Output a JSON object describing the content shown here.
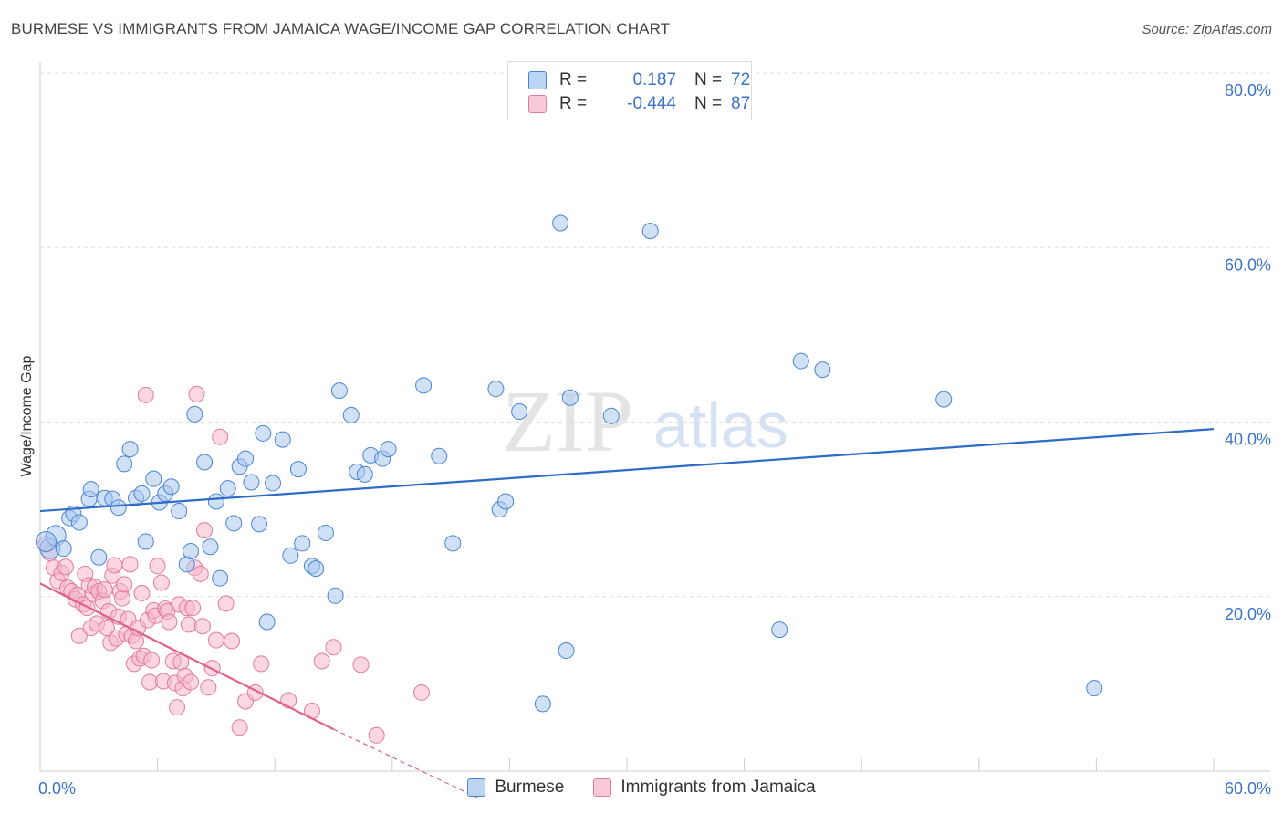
{
  "title": "BURMESE VS IMMIGRANTS FROM JAMAICA WAGE/INCOME GAP CORRELATION CHART",
  "source": "Source: ZipAtlas.com",
  "watermark": {
    "zip": "ZIP",
    "atlas": "atlas"
  },
  "legend": {
    "rows": [
      {
        "r_label": "R =",
        "r_value": "0.187",
        "n_label": "N =",
        "n_value": "72"
      },
      {
        "r_label": "R =",
        "r_value": "-0.444",
        "n_label": "N =",
        "n_value": "87"
      }
    ]
  },
  "colors": {
    "blue_fill": "#a9c8ef",
    "blue_stroke": "#4a84d4",
    "blue_line": "#2f6cc7",
    "pink_fill": "#f5b6ca",
    "pink_stroke": "#e27aa0",
    "pink_line": "#e0608e",
    "axis_text": "#3b73c8",
    "grid": "#dddddd"
  },
  "chart_data": {
    "type": "scatter",
    "title": "BURMESE VS IMMIGRANTS FROM JAMAICA WAGE/INCOME GAP CORRELATION CHART",
    "xlabel": "",
    "ylabel": "Wage/Income Gap",
    "xlim": [
      0,
      60
    ],
    "ylim": [
      0,
      80
    ],
    "x_ticks": [
      "0.0%",
      "60.0%"
    ],
    "y_ticks": [
      "20.0%",
      "40.0%",
      "60.0%",
      "80.0%"
    ],
    "y_tick_values": [
      20,
      40,
      60,
      80
    ],
    "grid": true,
    "legend_position": "bottom-center",
    "series": [
      {
        "name": "Burmese",
        "color": "blue",
        "points": [
          [
            0.5,
            25.5
          ],
          [
            0.8,
            27
          ],
          [
            1.2,
            25.5
          ],
          [
            1.5,
            29
          ],
          [
            1.7,
            29.5
          ],
          [
            2,
            28.5
          ],
          [
            2.5,
            31.2
          ],
          [
            2.6,
            32.3
          ],
          [
            3,
            24.5
          ],
          [
            3.3,
            31.3
          ],
          [
            3.7,
            31.2
          ],
          [
            4,
            30.2
          ],
          [
            4.3,
            35.2
          ],
          [
            4.6,
            36.9
          ],
          [
            4.9,
            31.3
          ],
          [
            5.2,
            31.8
          ],
          [
            5.4,
            26.3
          ],
          [
            5.8,
            33.5
          ],
          [
            6.1,
            30.8
          ],
          [
            6.4,
            31.8
          ],
          [
            6.7,
            32.6
          ],
          [
            7.1,
            29.8
          ],
          [
            7.5,
            23.7
          ],
          [
            7.7,
            25.2
          ],
          [
            7.9,
            40.9
          ],
          [
            8.4,
            35.4
          ],
          [
            8.7,
            25.7
          ],
          [
            9,
            30.9
          ],
          [
            9.2,
            22.1
          ],
          [
            9.6,
            32.4
          ],
          [
            9.9,
            28.4
          ],
          [
            10.2,
            34.9
          ],
          [
            10.5,
            35.8
          ],
          [
            10.8,
            33.1
          ],
          [
            11.2,
            28.3
          ],
          [
            11.4,
            38.7
          ],
          [
            11.6,
            17.1
          ],
          [
            11.9,
            33
          ],
          [
            12.4,
            38
          ],
          [
            12.8,
            24.7
          ],
          [
            13.2,
            34.6
          ],
          [
            13.4,
            26.1
          ],
          [
            13.9,
            23.5
          ],
          [
            14.1,
            23.2
          ],
          [
            14.6,
            27.3
          ],
          [
            15.1,
            20.1
          ],
          [
            15.3,
            43.6
          ],
          [
            15.9,
            40.8
          ],
          [
            16.2,
            34.3
          ],
          [
            16.6,
            34
          ],
          [
            16.9,
            36.2
          ],
          [
            17.5,
            35.8
          ],
          [
            17.8,
            36.9
          ],
          [
            19.6,
            44.2
          ],
          [
            20.4,
            36.1
          ],
          [
            21.1,
            26.1
          ],
          [
            23.3,
            43.8
          ],
          [
            23.5,
            30
          ],
          [
            23.8,
            30.9
          ],
          [
            24.5,
            41.2
          ],
          [
            25.7,
            7.7
          ],
          [
            26.6,
            62.8
          ],
          [
            26.9,
            13.8
          ],
          [
            27.1,
            42.8
          ],
          [
            29.2,
            40.7
          ],
          [
            31.2,
            61.9
          ],
          [
            37.8,
            16.2
          ],
          [
            38.9,
            47
          ],
          [
            40,
            46
          ],
          [
            46.2,
            42.6
          ],
          [
            53.9,
            9.5
          ],
          [
            0.3,
            26.3
          ]
        ],
        "trend": {
          "x": [
            0,
            60
          ],
          "y": [
            29.8,
            39.2
          ]
        }
      },
      {
        "name": "Immigrants from Jamaica",
        "color": "pink",
        "points": [
          [
            0.3,
            26
          ],
          [
            0.5,
            25
          ],
          [
            0.7,
            23.3
          ],
          [
            0.9,
            21.8
          ],
          [
            1.1,
            22.7
          ],
          [
            1.3,
            23.4
          ],
          [
            1.4,
            21
          ],
          [
            1.6,
            20.6
          ],
          [
            1.8,
            19.7
          ],
          [
            1.9,
            20.2
          ],
          [
            2,
            15.5
          ],
          [
            2.2,
            19.1
          ],
          [
            2.3,
            22.6
          ],
          [
            2.4,
            18.7
          ],
          [
            2.5,
            21.3
          ],
          [
            2.6,
            16.4
          ],
          [
            2.7,
            20.3
          ],
          [
            2.8,
            21.1
          ],
          [
            2.9,
            16.9
          ],
          [
            3,
            20.6
          ],
          [
            3.2,
            19.5
          ],
          [
            3.3,
            20.8
          ],
          [
            3.4,
            16.4
          ],
          [
            3.5,
            18.3
          ],
          [
            3.6,
            14.7
          ],
          [
            3.7,
            22.4
          ],
          [
            3.8,
            23.6
          ],
          [
            3.9,
            15.2
          ],
          [
            4,
            17.7
          ],
          [
            4.1,
            20.6
          ],
          [
            4.2,
            19.8
          ],
          [
            4.3,
            21.4
          ],
          [
            4.4,
            15.7
          ],
          [
            4.5,
            17.4
          ],
          [
            4.6,
            23.7
          ],
          [
            4.7,
            15.5
          ],
          [
            4.8,
            12.3
          ],
          [
            4.9,
            14.9
          ],
          [
            5,
            16.4
          ],
          [
            5.1,
            12.9
          ],
          [
            5.2,
            20.4
          ],
          [
            5.3,
            13.2
          ],
          [
            5.4,
            43.1
          ],
          [
            5.5,
            17.3
          ],
          [
            5.6,
            10.2
          ],
          [
            5.7,
            12.7
          ],
          [
            5.8,
            18.4
          ],
          [
            5.9,
            17.8
          ],
          [
            6,
            23.5
          ],
          [
            6.2,
            21.6
          ],
          [
            6.3,
            10.3
          ],
          [
            6.4,
            18.6
          ],
          [
            6.5,
            18.3
          ],
          [
            6.6,
            17.1
          ],
          [
            6.8,
            12.6
          ],
          [
            6.9,
            10.1
          ],
          [
            7,
            7.3
          ],
          [
            7.1,
            19.1
          ],
          [
            7.2,
            12.5
          ],
          [
            7.3,
            9.5
          ],
          [
            7.4,
            10.9
          ],
          [
            7.5,
            18.7
          ],
          [
            7.6,
            16.8
          ],
          [
            7.7,
            10.2
          ],
          [
            7.8,
            18.7
          ],
          [
            7.9,
            23.3
          ],
          [
            8,
            43.2
          ],
          [
            8.2,
            22.6
          ],
          [
            8.3,
            16.6
          ],
          [
            8.4,
            27.6
          ],
          [
            8.6,
            9.6
          ],
          [
            8.8,
            11.8
          ],
          [
            9,
            15
          ],
          [
            9.2,
            38.3
          ],
          [
            9.5,
            19.2
          ],
          [
            9.8,
            14.9
          ],
          [
            10.2,
            5
          ],
          [
            10.5,
            8
          ],
          [
            11,
            9
          ],
          [
            11.3,
            12.3
          ],
          [
            12.7,
            8.1
          ],
          [
            13.9,
            6.9
          ],
          [
            14.4,
            12.6
          ],
          [
            15,
            14.2
          ],
          [
            16.4,
            12.2
          ],
          [
            17.2,
            4.1
          ],
          [
            19.5,
            9
          ]
        ],
        "trend": {
          "x": [
            0,
            15
          ],
          "y": [
            21.5,
            4.8
          ]
        },
        "trend_dashed": {
          "x": [
            15,
            22.5
          ],
          "y": [
            4.8,
            -3.2
          ]
        }
      }
    ]
  },
  "bottom_legend": [
    "Burmese",
    "Immigrants from Jamaica"
  ]
}
